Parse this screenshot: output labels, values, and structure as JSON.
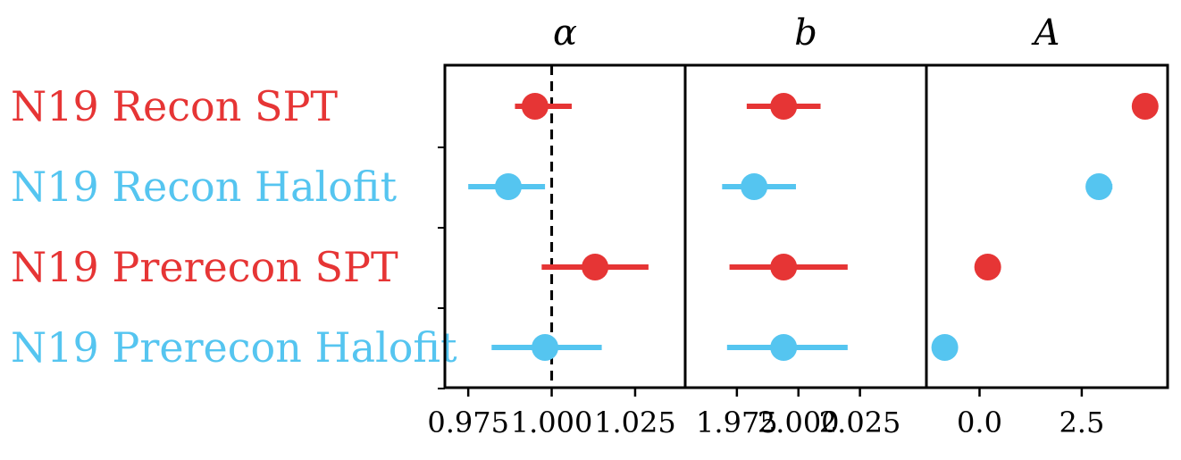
{
  "chart_data": {
    "type": "scatter",
    "colors": {
      "red": "#e63535",
      "blue": "#55c5f0"
    },
    "rows": [
      {
        "label": "N19 Recon SPT",
        "color": "red"
      },
      {
        "label": "N19 Recon Halofit",
        "color": "blue"
      },
      {
        "label": "N19 Prerecon SPT",
        "color": "red"
      },
      {
        "label": "N19 Prerecon Halofit",
        "color": "blue"
      }
    ],
    "panels": [
      {
        "title": "α",
        "xlim": [
          0.968,
          1.04
        ],
        "ticks": [
          0.975,
          1.0,
          1.025
        ],
        "tick_labels": [
          "0.975",
          "1.000",
          "1.025"
        ],
        "reference_line": 1.0,
        "points": [
          {
            "value": 0.995,
            "lo": 0.989,
            "hi": 1.006
          },
          {
            "value": 0.987,
            "lo": 0.975,
            "hi": 0.998
          },
          {
            "value": 1.013,
            "lo": 0.997,
            "hi": 1.029
          },
          {
            "value": 0.998,
            "lo": 0.982,
            "hi": 1.015
          }
        ]
      },
      {
        "title": "b",
        "xlim": [
          1.954,
          2.052
        ],
        "ticks": [
          1.975,
          2.0,
          2.025
        ],
        "tick_labels": [
          "1.975",
          "2.000",
          "2.025"
        ],
        "points": [
          {
            "value": 1.994,
            "lo": 1.979,
            "hi": 2.009
          },
          {
            "value": 1.982,
            "lo": 1.969,
            "hi": 1.999
          },
          {
            "value": 1.994,
            "lo": 1.972,
            "hi": 2.02
          },
          {
            "value": 1.994,
            "lo": 1.971,
            "hi": 2.02
          }
        ]
      },
      {
        "title": "A",
        "xlim": [
          -1.3,
          4.6
        ],
        "ticks": [
          0.0,
          2.5
        ],
        "tick_labels": [
          "0.0",
          "2.5"
        ],
        "points": [
          {
            "value": 4.05,
            "lo": 3.75,
            "hi": 4.35
          },
          {
            "value": 2.92,
            "lo": 2.6,
            "hi": 3.25
          },
          {
            "value": 0.2,
            "lo": 0.0,
            "hi": 0.45
          },
          {
            "value": -0.85,
            "lo": -1.05,
            "hi": -0.65
          }
        ]
      }
    ]
  }
}
